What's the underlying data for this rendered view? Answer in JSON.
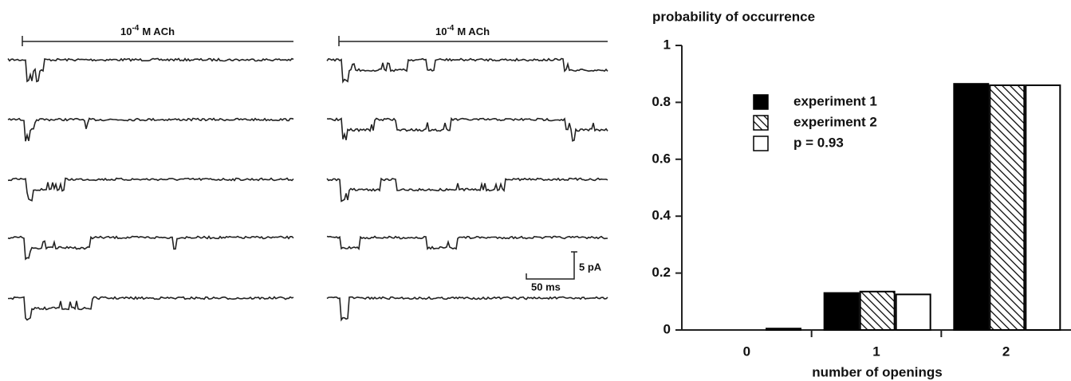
{
  "traces": {
    "left_label": {
      "base": "10",
      "exponent": "-4",
      "text": "M ACh"
    },
    "right_label": {
      "base": "10",
      "exponent": "-4",
      "text": "M ACh"
    },
    "scale_current": "5 pA",
    "scale_time": "50 ms"
  },
  "chart_data": {
    "type": "bar",
    "ylabel": "probability of occurrence",
    "xlabel": "number of openings",
    "categories": [
      "0",
      "1",
      "2"
    ],
    "series": [
      {
        "name": "experiment 1",
        "color": "#000000",
        "pattern": "solid",
        "values": [
          0,
          0.13,
          0.865
        ]
      },
      {
        "name": "experiment 2",
        "color": "#000000",
        "pattern": "hatch",
        "values": [
          0,
          0.135,
          0.86
        ]
      },
      {
        "name": "p = 0.93",
        "color": "#ffffff",
        "pattern": "solid",
        "values": [
          0.005,
          0.125,
          0.86
        ]
      }
    ],
    "ylim": [
      0,
      1
    ],
    "yticks": [
      0,
      0.2,
      0.4,
      0.6,
      0.8,
      1
    ],
    "grid": false,
    "legend": "upper left"
  }
}
